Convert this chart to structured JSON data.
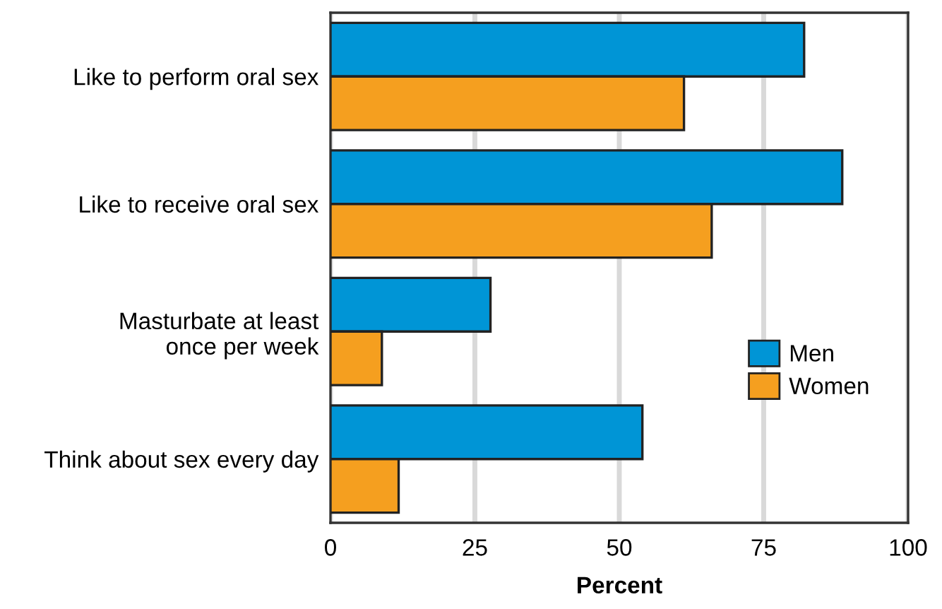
{
  "chart_data": {
    "type": "bar",
    "orientation": "horizontal",
    "xlabel": "Percent",
    "categories": [
      "Like to perform oral sex",
      "Like to receive oral sex",
      "Masturbate at least\nonce per week",
      "Think about sex every day"
    ],
    "series": [
      {
        "name": "Men",
        "color": "#0095d6",
        "values": [
          82,
          88.6,
          27.7,
          54
        ]
      },
      {
        "name": "Women",
        "color": "#f59f1f",
        "values": [
          61.2,
          66,
          8.9,
          11.8
        ]
      }
    ],
    "xlim": [
      0,
      100
    ],
    "xticks": [
      0,
      25,
      50,
      75,
      100
    ],
    "grid": "x",
    "legend": "right"
  }
}
